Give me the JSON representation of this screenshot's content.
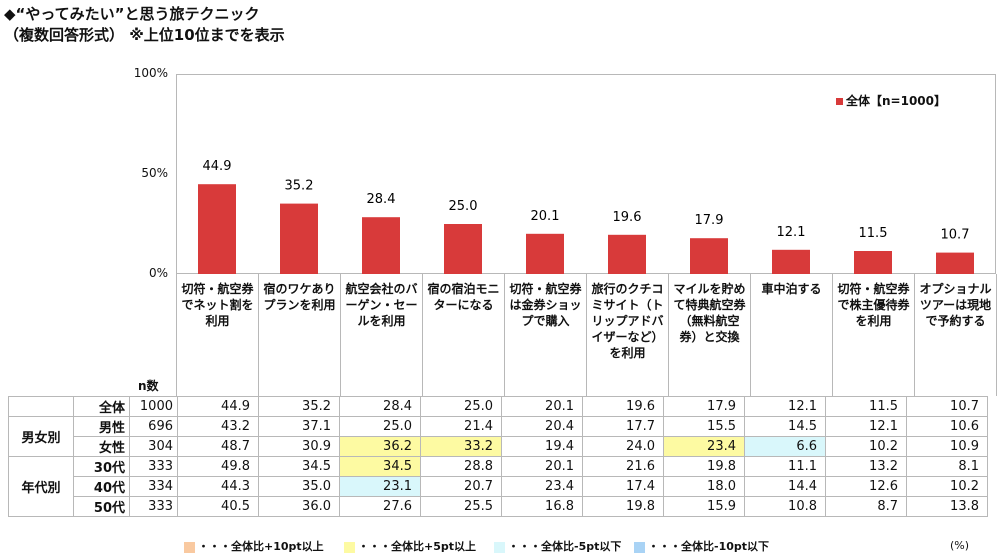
{
  "title_line1": "◆“やってみたい”と思う旅テクニック",
  "title_line2": "（複数回答形式） ※上位10位までを表示",
  "colors": {
    "bar": "#d83a3a",
    "higher10": "#f9c9a0",
    "higher5": "#fdfaa2",
    "lower5": "#d9f7fb",
    "lower10": "#a9d3f5"
  },
  "chart_data": {
    "type": "bar",
    "categories": [
      "切符・航空券でネット割を利用",
      "宿のワケありプランを利用",
      "航空会社のバーゲン・セールを利用",
      "宿の宿泊モニターになる",
      "切符・航空券は金券ショップで購入",
      "旅行のクチコミサイト（トリップアドバイザーなど）を利用",
      "マイルを貯めて特典航空券（無料航空券）と交換",
      "車中泊する",
      "切符・航空券で株主優待券を利用",
      "オプショナルツアーは現地で予約する"
    ],
    "series": [
      {
        "name": "全体【n=1000】",
        "values": [
          44.9,
          35.2,
          28.4,
          25.0,
          20.1,
          19.6,
          17.9,
          12.1,
          11.5,
          10.7
        ]
      }
    ],
    "ylim": [
      0,
      100
    ],
    "yticks": [
      "0%",
      "50%",
      "100%"
    ],
    "legend_position": "top-right",
    "grid": false
  },
  "table": {
    "n_header": "n数",
    "rows": [
      {
        "group": "",
        "label": "全体",
        "n": "1000",
        "values": [
          "44.9",
          "35.2",
          "28.4",
          "25.0",
          "20.1",
          "19.6",
          "17.9",
          "12.1",
          "11.5",
          "10.7"
        ],
        "hl": [
          "",
          "",
          "",
          "",
          "",
          "",
          "",
          "",
          "",
          ""
        ]
      },
      {
        "group": "男女別",
        "label": "男性",
        "n": "696",
        "values": [
          "43.2",
          "37.1",
          "25.0",
          "21.4",
          "20.4",
          "17.7",
          "15.5",
          "14.5",
          "12.1",
          "10.6"
        ],
        "hl": [
          "",
          "",
          "",
          "",
          "",
          "",
          "",
          "",
          "",
          ""
        ]
      },
      {
        "group": "",
        "label": "女性",
        "n": "304",
        "values": [
          "48.7",
          "30.9",
          "36.2",
          "33.2",
          "19.4",
          "24.0",
          "23.4",
          "6.6",
          "10.2",
          "10.9"
        ],
        "hl": [
          "",
          "",
          "y",
          "y",
          "",
          "",
          "y",
          "c",
          "",
          ""
        ]
      },
      {
        "group": "年代別",
        "label": "30代",
        "n": "333",
        "values": [
          "49.8",
          "34.5",
          "34.5",
          "28.8",
          "20.1",
          "21.6",
          "19.8",
          "11.1",
          "13.2",
          "8.1"
        ],
        "hl": [
          "",
          "",
          "y",
          "",
          "",
          "",
          "",
          "",
          "",
          ""
        ]
      },
      {
        "group": "",
        "label": "40代",
        "n": "334",
        "values": [
          "44.3",
          "35.0",
          "23.1",
          "20.7",
          "23.4",
          "17.4",
          "18.0",
          "14.4",
          "12.6",
          "10.2"
        ],
        "hl": [
          "",
          "",
          "c",
          "",
          "",
          "",
          "",
          "",
          "",
          ""
        ]
      },
      {
        "group": "",
        "label": "50代",
        "n": "333",
        "values": [
          "40.5",
          "36.0",
          "27.6",
          "25.5",
          "16.8",
          "19.8",
          "15.9",
          "10.8",
          "8.7",
          "13.8"
        ],
        "hl": [
          "",
          "",
          "",
          "",
          "",
          "",
          "",
          "",
          "",
          ""
        ]
      }
    ]
  },
  "footer": {
    "items": [
      "・・・全体比+10pt以上",
      "・・・全体比+5pt以上",
      "・・・全体比-5pt以下",
      "・・・全体比-10pt以下"
    ],
    "unit": "(%)"
  }
}
